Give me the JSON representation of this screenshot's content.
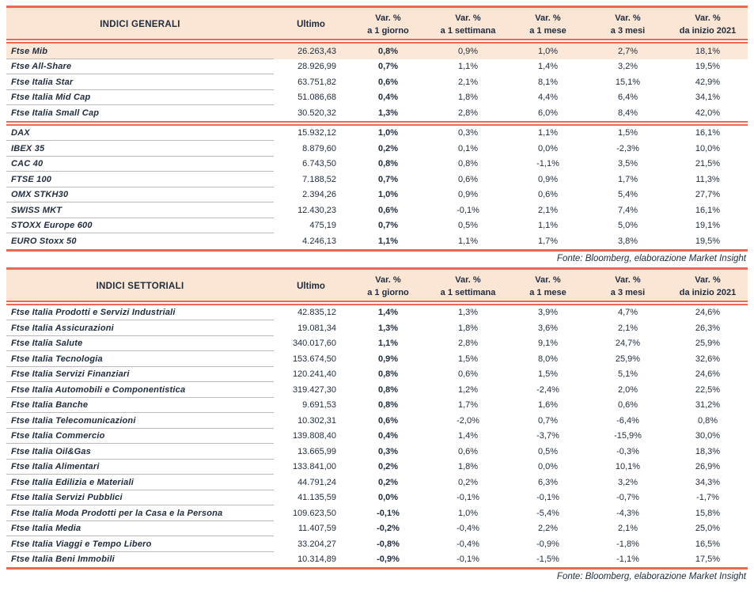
{
  "colors": {
    "accent_red": "#ec6852",
    "header_bg": "#fbe5d4",
    "highlight_bg": "#fce8d8",
    "text": "#1e2c3e",
    "separator": "#b9b9b9"
  },
  "tables": [
    {
      "title": "INDICI GENERALI",
      "ultimo_label": "Ultimo",
      "var_headers": [
        {
          "l1": "Var. %",
          "l2": "a 1 giorno"
        },
        {
          "l1": "Var. %",
          "l2": "a 1 settimana"
        },
        {
          "l1": "Var. %",
          "l2": "a 1 mese"
        },
        {
          "l1": "Var. %",
          "l2": "a 3 mesi"
        },
        {
          "l1": "Var. %",
          "l2": "da inizio 2021"
        }
      ],
      "sections": [
        {
          "rows": [
            {
              "name": "Ftse Mib",
              "ultimo": "26.263,43",
              "vars": [
                "0,8%",
                "0,9%",
                "1,0%",
                "2,7%",
                "18,1%"
              ],
              "highlight": true
            },
            {
              "name": "Ftse All-Share",
              "ultimo": "28.926,99",
              "vars": [
                "0,7%",
                "1,1%",
                "1,4%",
                "3,2%",
                "19,5%"
              ]
            },
            {
              "name": "Ftse Italia Star",
              "ultimo": "63.751,82",
              "vars": [
                "0,6%",
                "2,1%",
                "8,1%",
                "15,1%",
                "42,9%"
              ]
            },
            {
              "name": "Ftse Italia Mid Cap",
              "ultimo": "51.086,68",
              "vars": [
                "0,4%",
                "1,8%",
                "4,4%",
                "6,4%",
                "34,1%"
              ]
            },
            {
              "name": "Ftse Italia Small Cap",
              "ultimo": "30.520,32",
              "vars": [
                "1,3%",
                "2,8%",
                "6,0%",
                "8,4%",
                "42,0%"
              ]
            }
          ]
        },
        {
          "rows": [
            {
              "name": "DAX",
              "ultimo": "15.932,12",
              "vars": [
                "1,0%",
                "0,3%",
                "1,1%",
                "1,5%",
                "16,1%"
              ]
            },
            {
              "name": "IBEX 35",
              "ultimo": "8.879,60",
              "vars": [
                "0,2%",
                "0,1%",
                "0,0%",
                "-2,3%",
                "10,0%"
              ]
            },
            {
              "name": "CAC 40",
              "ultimo": "6.743,50",
              "vars": [
                "0,8%",
                "0,8%",
                "-1,1%",
                "3,5%",
                "21,5%"
              ]
            },
            {
              "name": "FTSE 100",
              "ultimo": "7.188,52",
              "vars": [
                "0,7%",
                "0,6%",
                "0,9%",
                "1,7%",
                "11,3%"
              ]
            },
            {
              "name": "OMX STKH30",
              "ultimo": "2.394,26",
              "vars": [
                "1,0%",
                "0,9%",
                "0,6%",
                "5,4%",
                "27,7%"
              ]
            },
            {
              "name": "SWISS MKT",
              "ultimo": "12.430,23",
              "vars": [
                "0,6%",
                "-0,1%",
                "2,1%",
                "7,4%",
                "16,1%"
              ]
            },
            {
              "name": "STOXX Europe 600",
              "ultimo": "475,19",
              "vars": [
                "0,7%",
                "0,5%",
                "1,1%",
                "5,0%",
                "19,1%"
              ]
            },
            {
              "name": "EURO Stoxx 50",
              "ultimo": "4.246,13",
              "vars": [
                "1,1%",
                "1,1%",
                "1,7%",
                "3,8%",
                "19,5%"
              ]
            }
          ]
        }
      ],
      "fonte": "Fonte: Bloomberg, elaborazione Market Insight"
    },
    {
      "title": "INDICI SETTORIALI",
      "ultimo_label": "Ultimo",
      "var_headers": [
        {
          "l1": "Var. %",
          "l2": "a 1 giorno"
        },
        {
          "l1": "Var. %",
          "l2": "a 1 settimana"
        },
        {
          "l1": "Var. %",
          "l2": "a 1 mese"
        },
        {
          "l1": "Var. %",
          "l2": "a 3 mesi"
        },
        {
          "l1": "Var. %",
          "l2": "da inizio 2021"
        }
      ],
      "sections": [
        {
          "rows": [
            {
              "name": "Ftse Italia Prodotti e Servizi Industriali",
              "ultimo": "42.835,12",
              "vars": [
                "1,4%",
                "1,3%",
                "3,9%",
                "4,7%",
                "24,6%"
              ]
            },
            {
              "name": "Ftse Italia Assicurazioni",
              "ultimo": "19.081,34",
              "vars": [
                "1,3%",
                "1,8%",
                "3,6%",
                "2,1%",
                "26,3%"
              ]
            },
            {
              "name": "Ftse Italia Salute",
              "ultimo": "340.017,60",
              "vars": [
                "1,1%",
                "2,8%",
                "9,1%",
                "24,7%",
                "25,9%"
              ]
            },
            {
              "name": "Ftse Italia Tecnologia",
              "ultimo": "153.674,50",
              "vars": [
                "0,9%",
                "1,5%",
                "8,0%",
                "25,9%",
                "32,6%"
              ]
            },
            {
              "name": "Ftse Italia Servizi Finanziari",
              "ultimo": "120.241,40",
              "vars": [
                "0,8%",
                "0,6%",
                "1,5%",
                "5,1%",
                "24,6%"
              ]
            },
            {
              "name": "Ftse Italia Automobili e Componentistica",
              "ultimo": "319.427,30",
              "vars": [
                "0,8%",
                "1,2%",
                "-2,4%",
                "2,0%",
                "22,5%"
              ]
            },
            {
              "name": "Ftse Italia Banche",
              "ultimo": "9.691,53",
              "vars": [
                "0,8%",
                "1,7%",
                "1,6%",
                "0,6%",
                "31,2%"
              ]
            },
            {
              "name": "Ftse Italia Telecomunicazioni",
              "ultimo": "10.302,31",
              "vars": [
                "0,6%",
                "-2,0%",
                "0,7%",
                "-6,4%",
                "0,8%"
              ]
            },
            {
              "name": "Ftse Italia Commercio",
              "ultimo": "139.808,40",
              "vars": [
                "0,4%",
                "1,4%",
                "-3,7%",
                "-15,9%",
                "30,0%"
              ]
            },
            {
              "name": "Ftse Italia Oil&Gas",
              "ultimo": "13.665,99",
              "vars": [
                "0,3%",
                "0,6%",
                "0,5%",
                "-0,3%",
                "18,3%"
              ]
            },
            {
              "name": "Ftse Italia Alimentari",
              "ultimo": "133.841,00",
              "vars": [
                "0,2%",
                "1,8%",
                "0,0%",
                "10,1%",
                "26,9%"
              ]
            },
            {
              "name": "Ftse Italia Edilizia e Materiali",
              "ultimo": "44.791,24",
              "vars": [
                "0,2%",
                "0,2%",
                "6,3%",
                "3,2%",
                "34,3%"
              ]
            },
            {
              "name": "Ftse Italia Servizi Pubblici",
              "ultimo": "41.135,59",
              "vars": [
                "0,0%",
                "-0,1%",
                "-0,1%",
                "-0,7%",
                "-1,7%"
              ]
            },
            {
              "name": "Ftse Italia Moda Prodotti per la Casa e la Persona",
              "ultimo": "109.623,50",
              "vars": [
                "-0,1%",
                "1,0%",
                "-5,4%",
                "-4,3%",
                "15,8%"
              ]
            },
            {
              "name": "Ftse Italia Media",
              "ultimo": "11.407,59",
              "vars": [
                "-0,2%",
                "-0,4%",
                "2,2%",
                "2,1%",
                "25,0%"
              ]
            },
            {
              "name": "Ftse Italia Viaggi e Tempo Libero",
              "ultimo": "33.204,27",
              "vars": [
                "-0,8%",
                "-0,4%",
                "-0,9%",
                "-1,8%",
                "16,5%"
              ]
            },
            {
              "name": "Ftse Italia Beni Immobili",
              "ultimo": "10.314,89",
              "vars": [
                "-0,9%",
                "-0,1%",
                "-1,5%",
                "-1,1%",
                "17,5%"
              ]
            }
          ]
        }
      ],
      "fonte": "Fonte: Bloomberg, elaborazione Market Insight"
    }
  ]
}
